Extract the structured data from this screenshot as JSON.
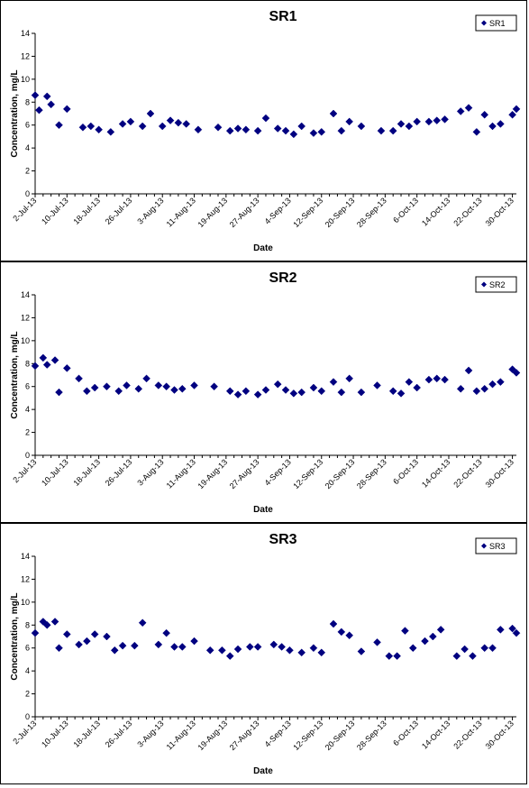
{
  "chart_data": [
    {
      "type": "scatter",
      "title": "SR1",
      "xlabel": "Date",
      "ylabel": "Concentration, mg/L",
      "ylim": [
        0,
        14
      ],
      "yticks": [
        "0",
        "2",
        "4",
        "6",
        "8",
        "10",
        "12",
        "14"
      ],
      "xtick_labels": [
        "2-Jul-13",
        "10-Jul-13",
        "18-Jul-13",
        "26-Jul-13",
        "3-Aug-13",
        "11-Aug-13",
        "19-Aug-13",
        "27-Aug-13",
        "4-Sep-13",
        "12-Sep-13",
        "20-Sep-13",
        "28-Sep-13",
        "6-Oct-13",
        "14-Oct-13",
        "22-Oct-13",
        "30-Oct-13"
      ],
      "xlim": [
        "2013-07-02",
        "2013-10-31"
      ],
      "legend_position": "top-right",
      "grid": false,
      "marker_color": "#000080",
      "series": [
        {
          "name": "SR1",
          "points": [
            [
              "2013-07-02",
              8.6
            ],
            [
              "2013-07-03",
              7.3
            ],
            [
              "2013-07-05",
              8.5
            ],
            [
              "2013-07-06",
              7.8
            ],
            [
              "2013-07-08",
              6.0
            ],
            [
              "2013-07-10",
              7.4
            ],
            [
              "2013-07-14",
              5.8
            ],
            [
              "2013-07-16",
              5.9
            ],
            [
              "2013-07-18",
              5.6
            ],
            [
              "2013-07-21",
              5.4
            ],
            [
              "2013-07-24",
              6.1
            ],
            [
              "2013-07-26",
              6.3
            ],
            [
              "2013-07-29",
              5.9
            ],
            [
              "2013-07-31",
              7.0
            ],
            [
              "2013-08-03",
              5.9
            ],
            [
              "2013-08-05",
              6.4
            ],
            [
              "2013-08-07",
              6.2
            ],
            [
              "2013-08-09",
              6.1
            ],
            [
              "2013-08-12",
              5.6
            ],
            [
              "2013-08-17",
              5.8
            ],
            [
              "2013-08-20",
              5.5
            ],
            [
              "2013-08-22",
              5.7
            ],
            [
              "2013-08-24",
              5.6
            ],
            [
              "2013-08-27",
              5.5
            ],
            [
              "2013-08-29",
              6.6
            ],
            [
              "2013-09-01",
              5.7
            ],
            [
              "2013-09-03",
              5.5
            ],
            [
              "2013-09-05",
              5.2
            ],
            [
              "2013-09-07",
              5.9
            ],
            [
              "2013-09-10",
              5.3
            ],
            [
              "2013-09-12",
              5.4
            ],
            [
              "2013-09-15",
              7.0
            ],
            [
              "2013-09-17",
              5.5
            ],
            [
              "2013-09-19",
              6.3
            ],
            [
              "2013-09-22",
              5.9
            ],
            [
              "2013-09-27",
              5.5
            ],
            [
              "2013-09-30",
              5.5
            ],
            [
              "2013-10-02",
              6.1
            ],
            [
              "2013-10-04",
              5.9
            ],
            [
              "2013-10-06",
              6.3
            ],
            [
              "2013-10-09",
              6.3
            ],
            [
              "2013-10-11",
              6.4
            ],
            [
              "2013-10-13",
              6.5
            ],
            [
              "2013-10-17",
              7.2
            ],
            [
              "2013-10-19",
              7.5
            ],
            [
              "2013-10-21",
              5.4
            ],
            [
              "2013-10-23",
              6.9
            ],
            [
              "2013-10-25",
              5.9
            ],
            [
              "2013-10-27",
              6.1
            ],
            [
              "2013-10-30",
              6.9
            ],
            [
              "2013-10-31",
              7.4
            ]
          ]
        }
      ]
    },
    {
      "type": "scatter",
      "title": "SR2",
      "xlabel": "Date",
      "ylabel": "Concentration, mg/L",
      "ylim": [
        0,
        14
      ],
      "yticks": [
        "0",
        "2",
        "4",
        "6",
        "8",
        "10",
        "12",
        "14"
      ],
      "xtick_labels": [
        "2-Jul-13",
        "10-Jul-13",
        "18-Jul-13",
        "26-Jul-13",
        "3-Aug-13",
        "11-Aug-13",
        "19-Aug-13",
        "27-Aug-13",
        "4-Sep-13",
        "12-Sep-13",
        "20-Sep-13",
        "28-Sep-13",
        "6-Oct-13",
        "14-Oct-13",
        "22-Oct-13",
        "30-Oct-13"
      ],
      "xlim": [
        "2013-07-02",
        "2013-10-31"
      ],
      "legend_position": "top-right",
      "grid": false,
      "marker_color": "#000080",
      "series": [
        {
          "name": "SR2",
          "points": [
            [
              "2013-07-02",
              7.8
            ],
            [
              "2013-07-04",
              8.5
            ],
            [
              "2013-07-05",
              7.9
            ],
            [
              "2013-07-07",
              8.3
            ],
            [
              "2013-07-08",
              5.5
            ],
            [
              "2013-07-10",
              7.6
            ],
            [
              "2013-07-13",
              6.7
            ],
            [
              "2013-07-15",
              5.6
            ],
            [
              "2013-07-17",
              5.9
            ],
            [
              "2013-07-20",
              6.0
            ],
            [
              "2013-07-23",
              5.6
            ],
            [
              "2013-07-25",
              6.1
            ],
            [
              "2013-07-28",
              5.8
            ],
            [
              "2013-07-30",
              6.7
            ],
            [
              "2013-08-02",
              6.1
            ],
            [
              "2013-08-04",
              6.0
            ],
            [
              "2013-08-06",
              5.7
            ],
            [
              "2013-08-08",
              5.8
            ],
            [
              "2013-08-11",
              6.1
            ],
            [
              "2013-08-16",
              6.0
            ],
            [
              "2013-08-20",
              5.6
            ],
            [
              "2013-08-22",
              5.3
            ],
            [
              "2013-08-24",
              5.6
            ],
            [
              "2013-08-27",
              5.3
            ],
            [
              "2013-08-29",
              5.7
            ],
            [
              "2013-09-01",
              6.2
            ],
            [
              "2013-09-03",
              5.7
            ],
            [
              "2013-09-05",
              5.4
            ],
            [
              "2013-09-07",
              5.5
            ],
            [
              "2013-09-10",
              5.9
            ],
            [
              "2013-09-12",
              5.6
            ],
            [
              "2013-09-15",
              6.4
            ],
            [
              "2013-09-17",
              5.5
            ],
            [
              "2013-09-19",
              6.7
            ],
            [
              "2013-09-22",
              5.5
            ],
            [
              "2013-09-26",
              6.1
            ],
            [
              "2013-09-30",
              5.6
            ],
            [
              "2013-10-02",
              5.4
            ],
            [
              "2013-10-04",
              6.4
            ],
            [
              "2013-10-06",
              5.9
            ],
            [
              "2013-10-09",
              6.6
            ],
            [
              "2013-10-11",
              6.7
            ],
            [
              "2013-10-13",
              6.6
            ],
            [
              "2013-10-17",
              5.8
            ],
            [
              "2013-10-19",
              7.4
            ],
            [
              "2013-10-21",
              5.6
            ],
            [
              "2013-10-23",
              5.8
            ],
            [
              "2013-10-25",
              6.2
            ],
            [
              "2013-10-27",
              6.4
            ],
            [
              "2013-10-30",
              7.5
            ],
            [
              "2013-10-31",
              7.2
            ]
          ]
        }
      ]
    },
    {
      "type": "scatter",
      "title": "SR3",
      "xlabel": "Date",
      "ylabel": "Concentration, mg/L",
      "ylim": [
        0,
        14
      ],
      "yticks": [
        "0",
        "2",
        "4",
        "6",
        "8",
        "10",
        "12",
        "14"
      ],
      "xtick_labels": [
        "2-Jul-13",
        "10-Jul-13",
        "18-Jul-13",
        "26-Jul-13",
        "3-Aug-13",
        "11-Aug-13",
        "19-Aug-13",
        "27-Aug-13",
        "4-Sep-13",
        "12-Sep-13",
        "20-Sep-13",
        "28-Sep-13",
        "6-Oct-13",
        "14-Oct-13",
        "22-Oct-13",
        "30-Oct-13"
      ],
      "xlim": [
        "2013-07-02",
        "2013-10-31"
      ],
      "legend_position": "top-right",
      "grid": false,
      "marker_color": "#000080",
      "series": [
        {
          "name": "SR3",
          "points": [
            [
              "2013-07-02",
              7.3
            ],
            [
              "2013-07-04",
              8.3
            ],
            [
              "2013-07-05",
              8.0
            ],
            [
              "2013-07-07",
              8.3
            ],
            [
              "2013-07-08",
              6.0
            ],
            [
              "2013-07-10",
              7.2
            ],
            [
              "2013-07-13",
              6.3
            ],
            [
              "2013-07-15",
              6.6
            ],
            [
              "2013-07-17",
              7.2
            ],
            [
              "2013-07-20",
              7.0
            ],
            [
              "2013-07-22",
              5.8
            ],
            [
              "2013-07-24",
              6.2
            ],
            [
              "2013-07-27",
              6.2
            ],
            [
              "2013-07-29",
              8.2
            ],
            [
              "2013-08-02",
              6.3
            ],
            [
              "2013-08-04",
              7.3
            ],
            [
              "2013-08-06",
              6.1
            ],
            [
              "2013-08-08",
              6.1
            ],
            [
              "2013-08-11",
              6.6
            ],
            [
              "2013-08-15",
              5.8
            ],
            [
              "2013-08-18",
              5.8
            ],
            [
              "2013-08-20",
              5.3
            ],
            [
              "2013-08-22",
              5.9
            ],
            [
              "2013-08-25",
              6.1
            ],
            [
              "2013-08-27",
              6.1
            ],
            [
              "2013-08-31",
              6.3
            ],
            [
              "2013-09-02",
              6.1
            ],
            [
              "2013-09-04",
              5.8
            ],
            [
              "2013-09-07",
              5.6
            ],
            [
              "2013-09-10",
              6.0
            ],
            [
              "2013-09-12",
              5.6
            ],
            [
              "2013-09-15",
              8.1
            ],
            [
              "2013-09-17",
              7.4
            ],
            [
              "2013-09-19",
              7.1
            ],
            [
              "2013-09-22",
              5.7
            ],
            [
              "2013-09-26",
              6.5
            ],
            [
              "2013-09-29",
              5.3
            ],
            [
              "2013-10-01",
              5.3
            ],
            [
              "2013-10-03",
              7.5
            ],
            [
              "2013-10-05",
              6.0
            ],
            [
              "2013-10-08",
              6.6
            ],
            [
              "2013-10-10",
              7.0
            ],
            [
              "2013-10-12",
              7.6
            ],
            [
              "2013-10-16",
              5.3
            ],
            [
              "2013-10-18",
              5.9
            ],
            [
              "2013-10-20",
              5.3
            ],
            [
              "2013-10-23",
              6.0
            ],
            [
              "2013-10-25",
              6.0
            ],
            [
              "2013-10-27",
              7.6
            ],
            [
              "2013-10-30",
              7.7
            ],
            [
              "2013-10-31",
              7.3
            ]
          ]
        }
      ]
    }
  ]
}
